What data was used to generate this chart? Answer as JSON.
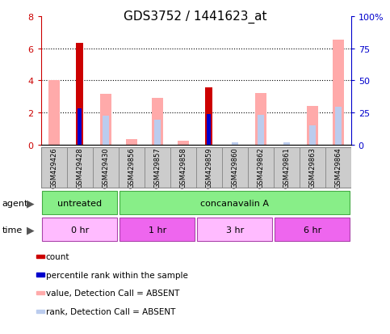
{
  "title": "GDS3752 / 1441623_at",
  "samples": [
    "GSM429426",
    "GSM429428",
    "GSM429430",
    "GSM429856",
    "GSM429857",
    "GSM429858",
    "GSM429859",
    "GSM429860",
    "GSM429862",
    "GSM429861",
    "GSM429863",
    "GSM429864"
  ],
  "count_values": [
    0,
    6.35,
    0,
    0,
    0,
    0,
    3.55,
    0,
    0,
    0,
    0,
    0
  ],
  "percentile_rank_values": [
    0,
    2.25,
    0,
    0,
    0,
    0,
    1.9,
    0,
    0,
    0,
    0,
    0
  ],
  "value_absent": [
    4.0,
    0,
    3.15,
    0.35,
    2.9,
    0.25,
    0,
    0,
    3.2,
    0,
    2.4,
    6.55
  ],
  "rank_absent": [
    0,
    0,
    1.8,
    0,
    1.55,
    0,
    0,
    0.15,
    1.85,
    0.15,
    1.2,
    2.35
  ],
  "ylim_left": [
    0,
    8
  ],
  "ylim_right": [
    0,
    100
  ],
  "yticks_left": [
    0,
    2,
    4,
    6,
    8
  ],
  "yticks_right": [
    0,
    25,
    50,
    75,
    100
  ],
  "ytick_labels_right": [
    "0",
    "25",
    "50",
    "75",
    "100%"
  ],
  "time_groups": [
    {
      "label": "0 hr",
      "start": 0,
      "end": 3
    },
    {
      "label": "1 hr",
      "start": 3,
      "end": 6
    },
    {
      "label": "3 hr",
      "start": 6,
      "end": 9
    },
    {
      "label": "6 hr",
      "start": 9,
      "end": 12
    }
  ],
  "time_colors": [
    "#ffbbff",
    "#ee66ee",
    "#ffbbff",
    "#ee66ee"
  ],
  "agent_groups": [
    {
      "label": "untreated",
      "start": 0,
      "end": 3
    },
    {
      "label": "concanavalin A",
      "start": 3,
      "end": 12
    }
  ],
  "agent_color": "#88ee88",
  "agent_edge_color": "#44aa44",
  "time_edge_color": "#aa44aa",
  "count_color": "#cc0000",
  "percentile_color": "#0000cc",
  "value_absent_color": "#ffaaaa",
  "rank_absent_color": "#bbccee",
  "bg_color": "#ffffff",
  "axis_color_left": "#cc0000",
  "axis_color_right": "#0000cc",
  "bar_bg_color": "#cccccc",
  "grid_color": "#000000",
  "legend_labels": [
    "count",
    "percentile rank within the sample",
    "value, Detection Call = ABSENT",
    "rank, Detection Call = ABSENT"
  ]
}
